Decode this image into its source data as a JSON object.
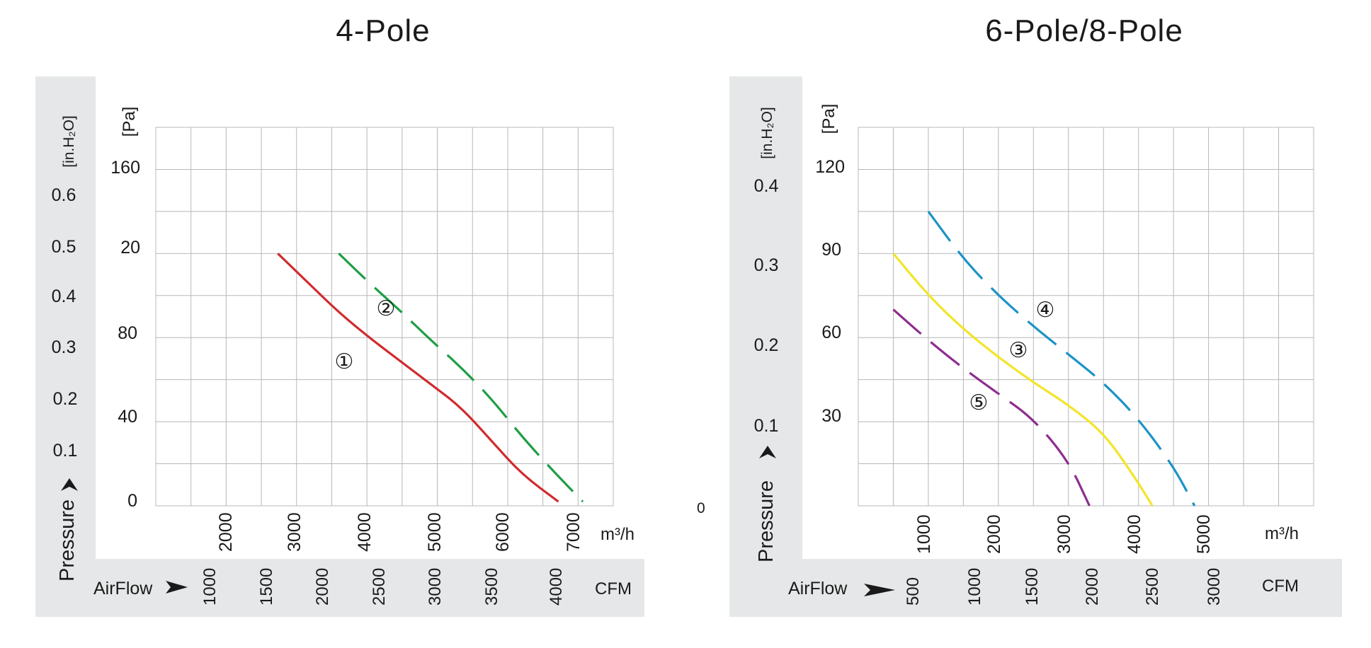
{
  "chart_data": [
    {
      "type": "line",
      "title": "4-Pole",
      "xlabel": "AirFlow",
      "ylabel": "Pressure",
      "pa_unit": "[Pa]",
      "inh2o_unit": "[in.H₂O]",
      "m3h_unit": "m³/h",
      "cfm_unit": "CFM",
      "pa_ticks": [
        "160",
        "20",
        "80",
        "40",
        "0"
      ],
      "inh2o_ticks": [
        "0.6",
        "0.5",
        "0.4",
        "0.3",
        "0.2",
        "0.1"
      ],
      "m3h_ticks": [
        "2000",
        "3000",
        "4000",
        "5000",
        "6000",
        "7000"
      ],
      "cfm_ticks": [
        "1000",
        "1500",
        "2000",
        "2500",
        "3000",
        "3500",
        "4000"
      ],
      "xlim": [
        0,
        7500
      ],
      "ylim": [
        0,
        180
      ],
      "grid": true,
      "series": [
        {
          "name": "①",
          "color": "#d02b2e",
          "dashed": false,
          "x": [
            2000,
            2500,
            3000,
            3500,
            4000,
            4500,
            5000,
            5500,
            6000,
            6600
          ],
          "y": [
            120,
            106,
            92,
            80,
            69,
            58,
            47,
            31,
            15,
            2
          ]
        },
        {
          "name": "②",
          "color": "#1f9e45",
          "dashed": true,
          "x": [
            3000,
            3500,
            4000,
            4500,
            5000,
            5500,
            6000,
            6500,
            7000
          ],
          "y": [
            120,
            106,
            93,
            79,
            66,
            51,
            33,
            17,
            2
          ]
        }
      ]
    },
    {
      "type": "line",
      "title": "6-Pole/8-Pole",
      "xlabel": "AirFlow",
      "ylabel": "Pressure",
      "pa_unit": "[Pa]",
      "inh2o_unit": "[in.H₂O]",
      "m3h_unit": "m³/h",
      "cfm_unit": "CFM",
      "pa_ticks": [
        "120",
        "90",
        "60",
        "30"
      ],
      "inh2o_ticks": [
        "0.4",
        "0.3",
        "0.2",
        "0.1"
      ],
      "m3h_ticks": [
        "1000",
        "2000",
        "3000",
        "4000",
        "5000"
      ],
      "cfm_ticks": [
        "500",
        "1000",
        "1500",
        "2000",
        "2500",
        "3000"
      ],
      "stray_label": "0",
      "xlim": [
        0,
        6500
      ],
      "ylim": [
        0,
        135
      ],
      "grid": true,
      "series": [
        {
          "name": "④",
          "color": "#1b93c6",
          "dashed": true,
          "x": [
            1000,
            1500,
            2000,
            2500,
            3000,
            3500,
            4000,
            4500,
            4800
          ],
          "y": [
            105,
            88,
            75,
            64,
            54,
            44,
            31,
            14,
            0
          ]
        },
        {
          "name": "③",
          "color": "#f2e52a",
          "dashed": false,
          "x": [
            500,
            1000,
            1500,
            2000,
            2500,
            3000,
            3500,
            3900,
            4200
          ],
          "y": [
            90,
            75,
            63,
            53,
            44,
            36,
            26,
            12,
            0
          ]
        },
        {
          "name": "⑤",
          "color": "#8e2d8f",
          "dashed": true,
          "x": [
            500,
            1000,
            1500,
            2000,
            2500,
            3000,
            3300
          ],
          "y": [
            70,
            59,
            49,
            40,
            31,
            16,
            0
          ]
        }
      ]
    }
  ]
}
